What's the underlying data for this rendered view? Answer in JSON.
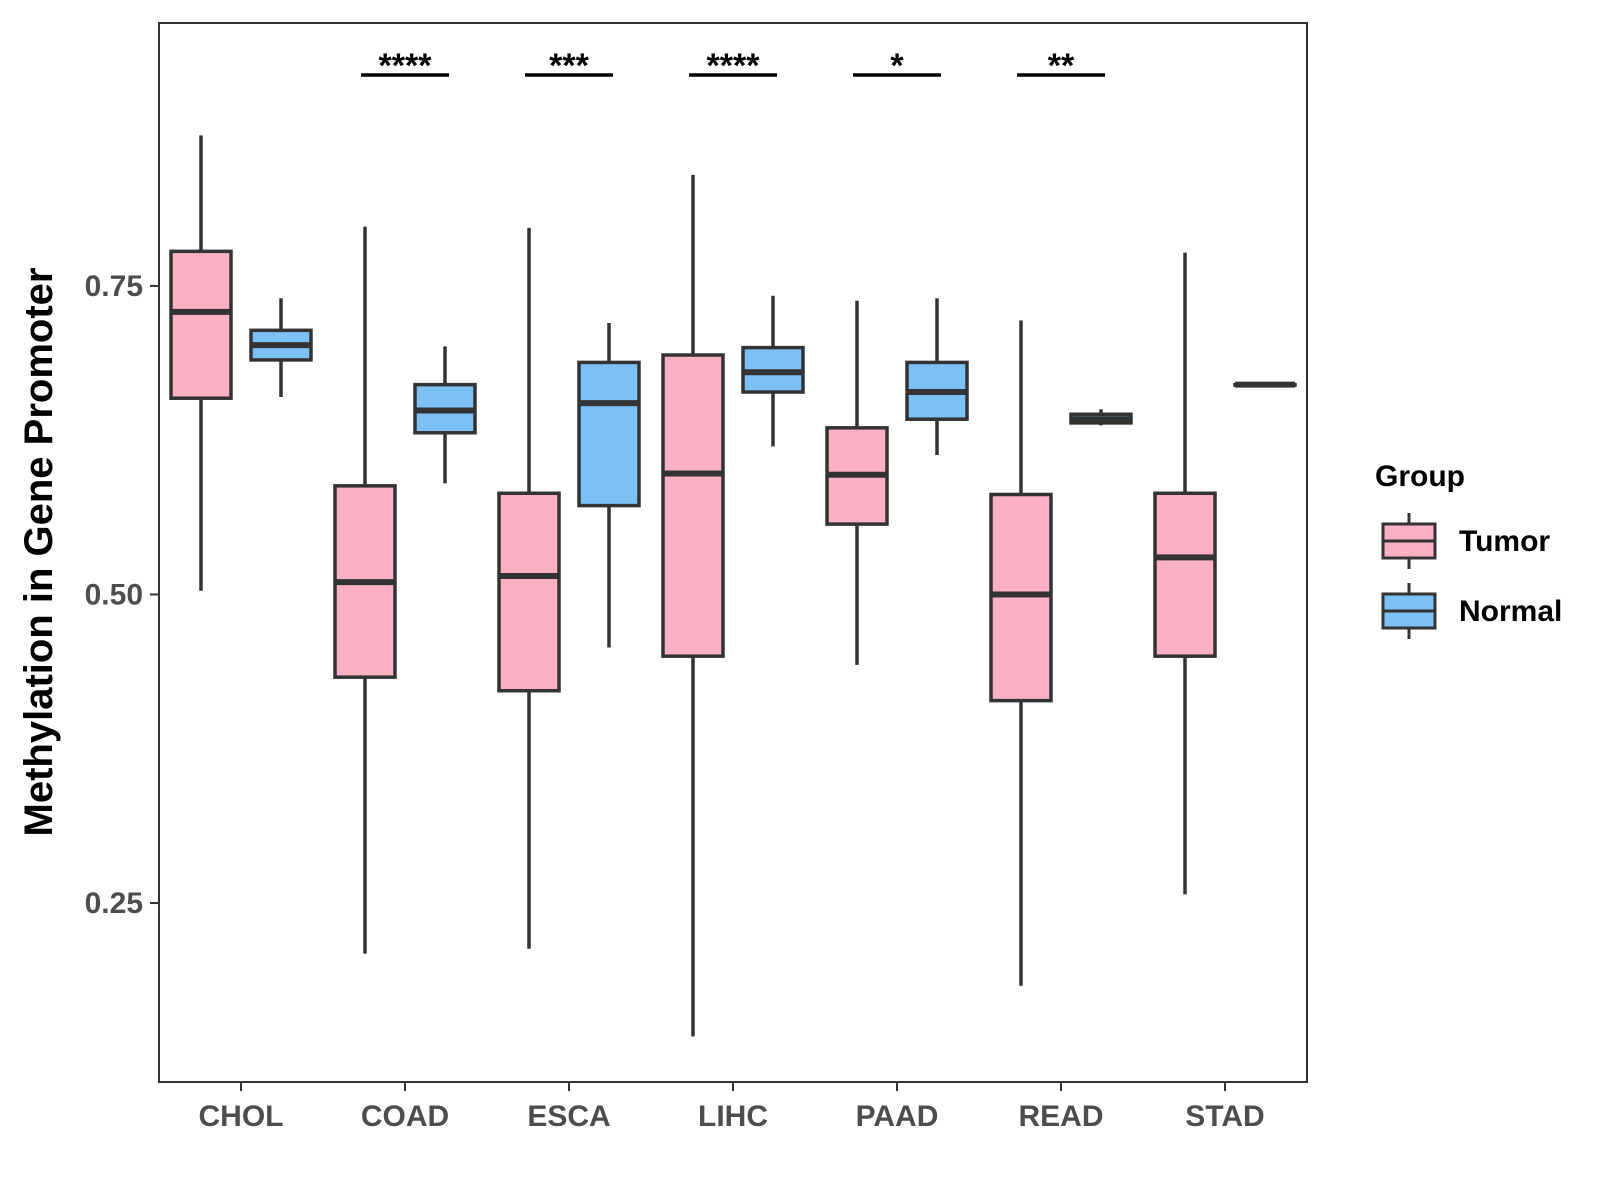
{
  "chart_data": {
    "type": "boxplot",
    "title": "",
    "xlabel": "",
    "ylabel": "Methylation in Gene Promoter",
    "ylim": [
      0.105,
      0.963
    ],
    "yticks": [
      0.25,
      0.5,
      0.75
    ],
    "ytick_labels": [
      "0.25",
      "0.50",
      "0.75"
    ],
    "categories": [
      "CHOL",
      "COAD",
      "ESCA",
      "LIHC",
      "PAAD",
      "READ",
      "STAD"
    ],
    "legend": {
      "title": "Group",
      "position": "right",
      "entries": [
        {
          "name": "Tumor",
          "color": "#fbb1c3"
        },
        {
          "name": "Normal",
          "color": "#7cc1f6"
        }
      ]
    },
    "series": [
      {
        "name": "Tumor",
        "color": "#fbb1c3",
        "boxes": [
          {
            "category": "CHOL",
            "min": 0.503,
            "q1": 0.659,
            "median": 0.729,
            "q3": 0.778,
            "max": 0.872
          },
          {
            "category": "COAD",
            "min": 0.209,
            "q1": 0.433,
            "median": 0.51,
            "q3": 0.588,
            "max": 0.798
          },
          {
            "category": "ESCA",
            "min": 0.213,
            "q1": 0.422,
            "median": 0.515,
            "q3": 0.582,
            "max": 0.797
          },
          {
            "category": "LIHC",
            "min": 0.142,
            "q1": 0.45,
            "median": 0.598,
            "q3": 0.694,
            "max": 0.84
          },
          {
            "category": "PAAD",
            "min": 0.443,
            "q1": 0.557,
            "median": 0.597,
            "q3": 0.635,
            "max": 0.738
          },
          {
            "category": "READ",
            "min": 0.183,
            "q1": 0.414,
            "median": 0.5,
            "q3": 0.581,
            "max": 0.722
          },
          {
            "category": "STAD",
            "min": 0.257,
            "q1": 0.45,
            "median": 0.53,
            "q3": 0.582,
            "max": 0.777
          }
        ]
      },
      {
        "name": "Normal",
        "color": "#7cc1f6",
        "boxes": [
          {
            "category": "CHOL",
            "min": 0.66,
            "q1": 0.69,
            "median": 0.702,
            "q3": 0.714,
            "max": 0.74
          },
          {
            "category": "COAD",
            "min": 0.59,
            "q1": 0.631,
            "median": 0.649,
            "q3": 0.67,
            "max": 0.701
          },
          {
            "category": "ESCA",
            "min": 0.457,
            "q1": 0.572,
            "median": 0.655,
            "q3": 0.688,
            "max": 0.72
          },
          {
            "category": "LIHC",
            "min": 0.62,
            "q1": 0.664,
            "median": 0.68,
            "q3": 0.7,
            "max": 0.742
          },
          {
            "category": "PAAD",
            "min": 0.613,
            "q1": 0.642,
            "median": 0.664,
            "q3": 0.688,
            "max": 0.74
          },
          {
            "category": "READ",
            "min": 0.637,
            "q1": 0.639,
            "median": 0.642,
            "q3": 0.646,
            "max": 0.65
          },
          {
            "category": "STAD",
            "min": 0.67,
            "q1": 0.67,
            "median": 0.67,
            "q3": 0.67,
            "max": 0.67
          }
        ]
      }
    ],
    "annotations": [
      {
        "category": "COAD",
        "label": "****"
      },
      {
        "category": "ESCA",
        "label": "***"
      },
      {
        "category": "LIHC",
        "label": "****"
      },
      {
        "category": "PAAD",
        "label": "*"
      },
      {
        "category": "READ",
        "label": "**"
      }
    ],
    "grid": false
  }
}
